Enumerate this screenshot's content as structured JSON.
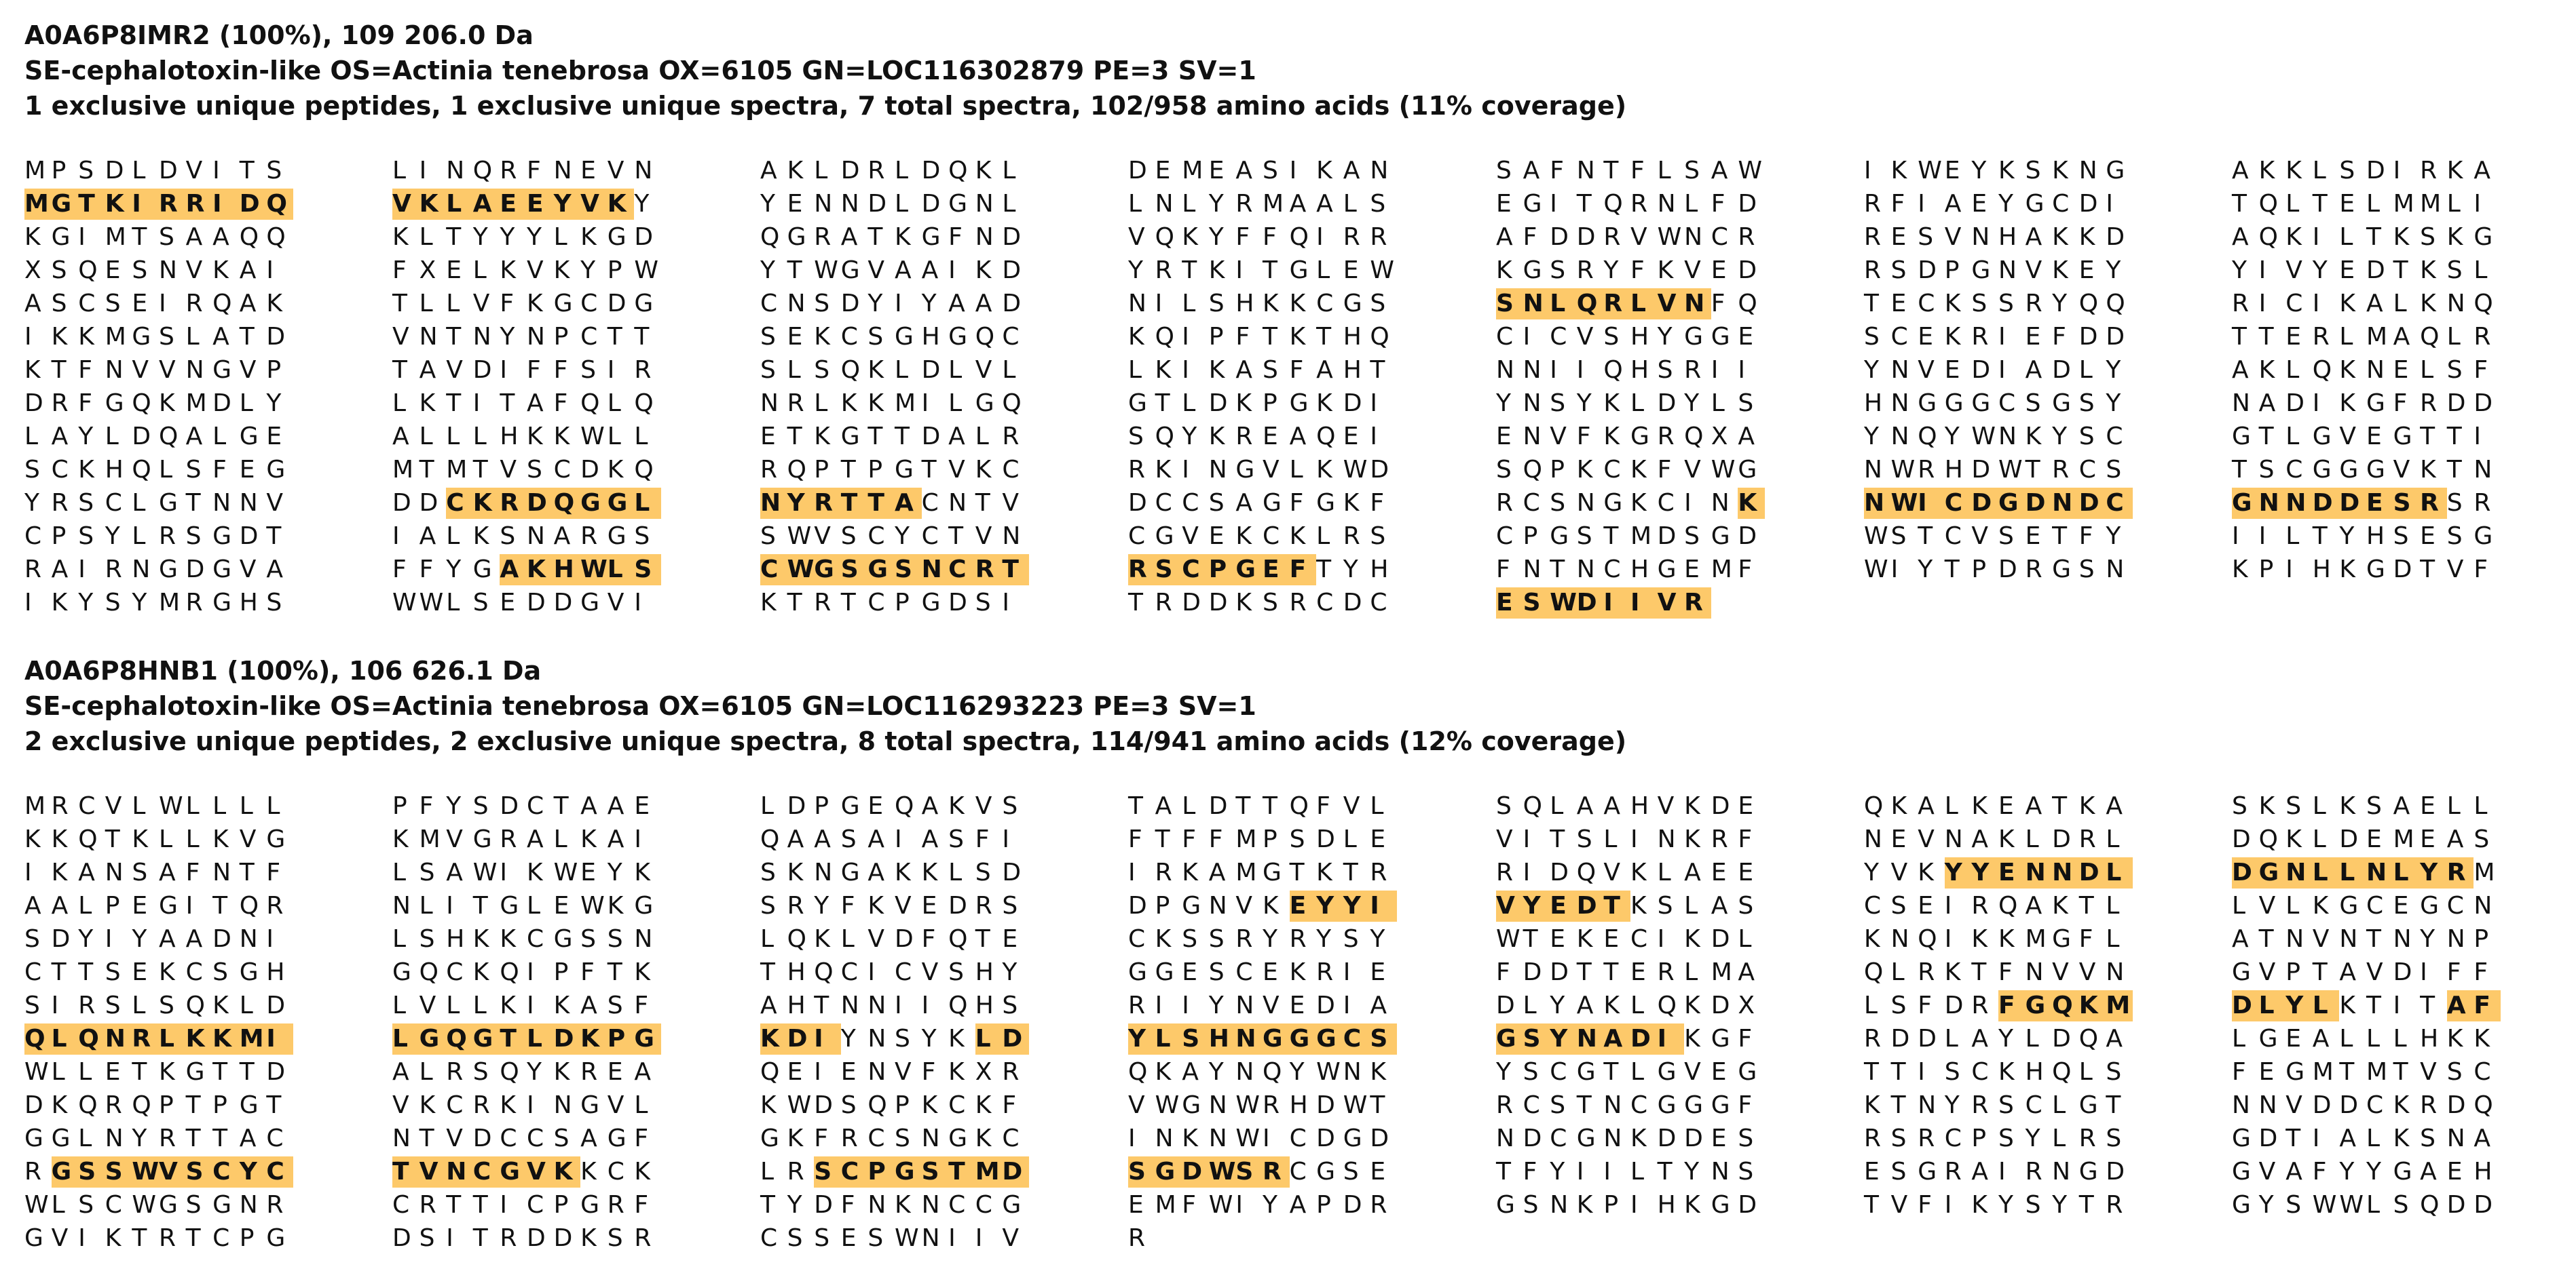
{
  "proteins": [
    {
      "header": [
        "A0A6P8IMR2 (100%), 109 206.0 Da",
        "SE-cephalotoxin-like OS=Actinia tenebrosa OX=6105 GN=LOC116302879 PE=3 SV=1",
        "1 exclusive unique peptides, 1 exclusive unique spectra, 7 total spectra, 102/958 amino acids (11% coverage)"
      ],
      "rows": [
        [
          "MPSDLDVITS",
          "LINQRFNEVN",
          "AKLDRLDQKL",
          "DEMEASIKAN",
          "SAFNTFLSAW",
          "IKWEYKSKNG",
          "AKKLSDIRKA"
        ],
        [
          "MGTKIRRIDQ",
          "VKLAEEYVKY",
          "YENNDLDGNL",
          "LNLYRMAALS",
          "EGITQRNLFD",
          "RFIAEYGCDI",
          "TQLTELMMLI"
        ],
        [
          "KGIMTSAAQQ",
          "KLTYYYLKGD",
          "QGRATKGFND",
          "VQKYFFQIRR",
          "AFDDRVWNCR",
          "RESVNHAKKD",
          "AQKILTKSKG"
        ],
        [
          "XSQESNVKAI",
          "FXELKVKYPW",
          "YTWGVAAIKD",
          "YRTKITGLEW",
          "KGSRYFKVED",
          "RSDPGNVKEY",
          "YIVYEDTKSL"
        ],
        [
          "ASCSEIRQAK",
          "TLLVFKGCDG",
          "CNSDYIYAAD",
          "NILSHKKCGS",
          "SNLQRLVNFQ",
          "TECKSSRYQQ",
          "RICIKALKNQ"
        ],
        [
          "IKKMGSLATD",
          "VNTNYNPCTT",
          "SEKCSGHGQC",
          "KQIPFTKTHQ",
          "CICVSHYGGE",
          "SCEKRIEFDD",
          "TTERLMAQLR"
        ],
        [
          "KTFNVVNGVP",
          "TAVDIFFSIR",
          "SLSQKLDLVL",
          "LKIKASFAHT",
          "NNIIQHSRII",
          "YNVEDIADLY",
          "AKLQKNELSF"
        ],
        [
          "DRFGQKMDLY",
          "LKTITAFQLQ",
          "NRLKKMILGQ",
          "GTLDKPGKDI",
          "YNSYKLDYLS",
          "HNGGGCSGSY",
          "NADIKGFRDD"
        ],
        [
          "LAYLDQALGE",
          "ALLLHKKWLL",
          "ETKGTTDALR",
          "SQYKREAQEI",
          "ENVFKGRQXA",
          "YNQYWNKYSC",
          "GTLGVEGTTI"
        ],
        [
          "SCKHQLSFEG",
          "MTMTVSCDKQ",
          "RQPTPGTVKC",
          "RKINGVLKWD",
          "SQPKCKFVWG",
          "NWRHDWTRCS",
          "TSCGGGVKTN"
        ],
        [
          "YRSCLGTNNV",
          "DDCKRDQGGL",
          "NYRTTACNTV",
          "DCCSAGFGKF",
          "RCSNGKCINK",
          "NWICDGDNDC",
          "GNNDDESRSR"
        ],
        [
          "CPSYLRSGDT",
          "IALKSNARGS",
          "SWVSCYCTVN",
          "CGVEKCKLRS",
          "CPGSTMDSGD",
          "WSTCVSETFY",
          "IILTYHSESG"
        ],
        [
          "RAIRNGDGVA",
          "FFYGAKHWLS",
          "CWGSGSNCRT",
          "RSCPGEFTYH",
          "FNTNCHGEMF",
          "WIYTPDRGSN",
          "KPIHKGDTVF"
        ],
        [
          "IKYSYMRGHS",
          "WWLSEDDGVI",
          "KTRTCPGDSI",
          "TRDDKSRCDC",
          "ESWDIIVR"
        ]
      ],
      "coverage_ranges": [
        [
          70,
          88
        ],
        [
          320,
          327
        ],
        [
          712,
          725
        ],
        [
          749,
          767
        ],
        [
          854,
          876
        ],
        [
          950,
          957
        ]
      ]
    },
    {
      "header": [
        "A0A6P8HNB1 (100%), 106 626.1 Da",
        "SE-cephalotoxin-like OS=Actinia tenebrosa OX=6105 GN=LOC116293223 PE=3 SV=1",
        "2 exclusive unique peptides, 2 exclusive unique spectra, 8 total spectra, 114/941 amino acids (12% coverage)"
      ],
      "rows": [
        [
          "MRCVLWLLLL",
          "PFYSDCTAAE",
          "LDPGEQAKVS",
          "TALDTTQFVL",
          "SQLAAHVKDE",
          "QKALKEATKA",
          "SKSLKSAELL"
        ],
        [
          "KKQTKLLKVG",
          "KMVGRALKAI",
          "QAASAIASFI",
          "FTFFMPSDLE",
          "VITSLINKRF",
          "NEVNAKLDRL",
          "DQKLDEMEAS"
        ],
        [
          "IKANSAFNTF",
          "LSAWIKWEYK",
          "SKNGAKKLSD",
          "IRKAMGTKTR",
          "RIDQVKLAEE",
          "YVKYYENNDL",
          "DGNLLNLYRM"
        ],
        [
          "AALPEGITQR",
          "NLITGLEWKG",
          "SRYFKVEDRS",
          "DPGNVKEYYI",
          "VYEDTKSLAS",
          "CSEIRQAKTL",
          "LVLKGCEGCN"
        ],
        [
          "SDYIYAADNI",
          "LSHKKCGSSN",
          "LQKLVDFQTE",
          "CKSSRYRYSY",
          "WTEKECIKDL",
          "KNQIKKMGFL",
          "ATNVNTNYNP"
        ],
        [
          "CTTSEKCSGH",
          "GQCKQIPFTK",
          "THQCICVSHY",
          "GGESCEKRIE",
          "FDDTTERLMA",
          "QLRKTFNVVN",
          "GVPTAVDIFF"
        ],
        [
          "SIRSLSQKLD",
          "LVLLKIKASF",
          "AHTNNIIQHS",
          "RIIYNVEDIA",
          "DLYAKLQKDX",
          "LSFDRFGQKM",
          "DLYLKTITAF"
        ],
        [
          "QLQNRLKKMI",
          "LGQGTLDKPG",
          "KDIYNSYKLD",
          "YLSHNGGGCS",
          "GSYNADIKGF",
          "RDDLAYLDQA",
          "LGEALLLHKK"
        ],
        [
          "WLLETKGTTD",
          "ALRSQYKREA",
          "QEIENVFKXR",
          "QKAYNQYWNK",
          "YSCGTLGVEG",
          "TTISCKHQLS",
          "FEGMTMTVSC"
        ],
        [
          "DKQRQPTPGT",
          "VKCRKINGVL",
          "KWDSQPKCKF",
          "VWGNWRHDWT",
          "RCSTNCGGGF",
          "KTNYRSCLGT",
          "NNVDDCKRDQ"
        ],
        [
          "GGLNYRTTAC",
          "NTVDCCSAGF",
          "GKFRCSNGKC",
          "INKNWICDGD",
          "NDCGNKDDES",
          "RSRCPSYLRS",
          "GDTIALKSNA"
        ],
        [
          "RGSSWVSCYC",
          "TVNCGVKKCK",
          "LRSCPGSTMD",
          "SGDWSRCGSE",
          "TFYIILTYNS",
          "ESGRAIRNGD",
          "GVAFYYGAEH"
        ],
        [
          "WLSCWGSGNR",
          "CRTTICPGRF",
          "TYDFNKNCCG",
          "EMFWIYAPDR",
          "GSNKPIHKGD",
          "TVFIKYSYTR",
          "GYSWWLSQDD"
        ],
        [
          "GVIKTRTCPG",
          "DSITRDDKSR",
          "CSSESWNIIV",
          "R"
        ]
      ],
      "coverage_ranges": [
        [
          193,
          208
        ],
        [
          246,
          254
        ],
        [
          475,
          483
        ],
        [
          488,
          512
        ],
        [
          518,
          536
        ],
        [
          771,
          786
        ],
        [
          792,
          805
        ]
      ]
    }
  ],
  "colors": {
    "highlight": "#fdc96a",
    "text": "#111111",
    "background": "#ffffff"
  }
}
